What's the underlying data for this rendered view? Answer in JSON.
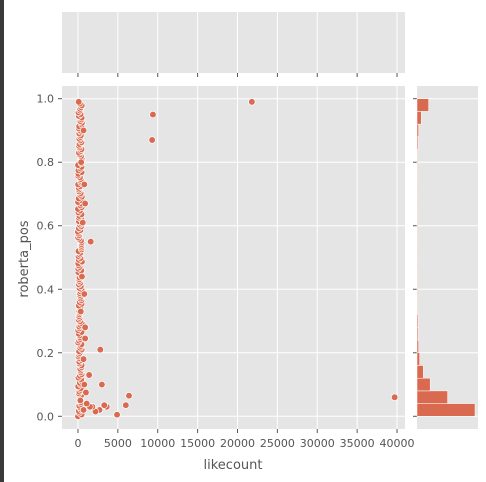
{
  "chart_data": {
    "type": "scatter",
    "subtype": "jointplot",
    "xlabel": "likecount",
    "ylabel": "roberta_pos",
    "xlim": [
      -2000,
      41000
    ],
    "ylim": [
      -0.04,
      1.04
    ],
    "x_ticks": [
      0,
      5000,
      10000,
      15000,
      20000,
      25000,
      30000,
      35000,
      40000
    ],
    "x_tick_labels": [
      "0",
      "5000",
      "10000",
      "15000",
      "20000",
      "25000",
      "30000",
      "35000",
      "40000"
    ],
    "y_ticks": [
      0.0,
      0.2,
      0.4,
      0.6,
      0.8,
      1.0
    ],
    "y_tick_labels": [
      "0.0",
      "0.2",
      "0.4",
      "0.6",
      "0.8",
      "1.0"
    ],
    "grid": true,
    "point_color": "#d9694f",
    "background": "#e5e5e5",
    "points": [
      {
        "x": 21800,
        "y": 0.99
      },
      {
        "x": 9400,
        "y": 0.95
      },
      {
        "x": 9300,
        "y": 0.87
      },
      {
        "x": 39700,
        "y": 0.06
      },
      {
        "x": 6400,
        "y": 0.065
      },
      {
        "x": 6000,
        "y": 0.035
      },
      {
        "x": 4900,
        "y": 0.005
      },
      {
        "x": 3600,
        "y": 0.03
      },
      {
        "x": 3300,
        "y": 0.035
      },
      {
        "x": 3000,
        "y": 0.1
      },
      {
        "x": 2800,
        "y": 0.21
      },
      {
        "x": 2700,
        "y": 0.02
      },
      {
        "x": 2200,
        "y": 0.015
      },
      {
        "x": 1800,
        "y": 0.03
      },
      {
        "x": 1500,
        "y": 0.03
      },
      {
        "x": 1600,
        "y": 0.55
      },
      {
        "x": 1400,
        "y": 0.13
      },
      {
        "x": 1100,
        "y": 0.04
      },
      {
        "x": 1000,
        "y": 0.075
      },
      {
        "x": 900,
        "y": 0.67
      },
      {
        "x": 800,
        "y": 0.73
      },
      {
        "x": 800,
        "y": 0.385
      },
      {
        "x": 900,
        "y": 0.28
      },
      {
        "x": 900,
        "y": 0.245
      },
      {
        "x": 800,
        "y": 0.1
      },
      {
        "x": 700,
        "y": 0.9
      },
      {
        "x": 700,
        "y": 0.18
      },
      {
        "x": 700,
        "y": 0.02
      },
      {
        "x": 600,
        "y": 0.61
      },
      {
        "x": 500,
        "y": 0.44
      },
      {
        "x": 400,
        "y": 0.8
      },
      {
        "x": 350,
        "y": 0.33
      },
      {
        "x": 300,
        "y": 0.05
      }
    ],
    "dense_strip": {
      "x_range": [
        0,
        500
      ],
      "y_range": [
        0.0,
        0.99
      ],
      "count": 180
    },
    "y_marginal_histogram": {
      "bin_edges": [
        0.0,
        0.04,
        0.08,
        0.12,
        0.16,
        0.2,
        0.24,
        0.28,
        0.32,
        0.36,
        0.4,
        0.44,
        0.48,
        0.52,
        0.56,
        0.6,
        0.64,
        0.68,
        0.72,
        0.76,
        0.8,
        0.84,
        0.88,
        0.92,
        0.96,
        1.0
      ],
      "counts": [
        110,
        58,
        25,
        12,
        5,
        3,
        2,
        2,
        1,
        1,
        1,
        1,
        1,
        1,
        1,
        1,
        1,
        1,
        1,
        1,
        1,
        2,
        3,
        8,
        22
      ]
    }
  }
}
